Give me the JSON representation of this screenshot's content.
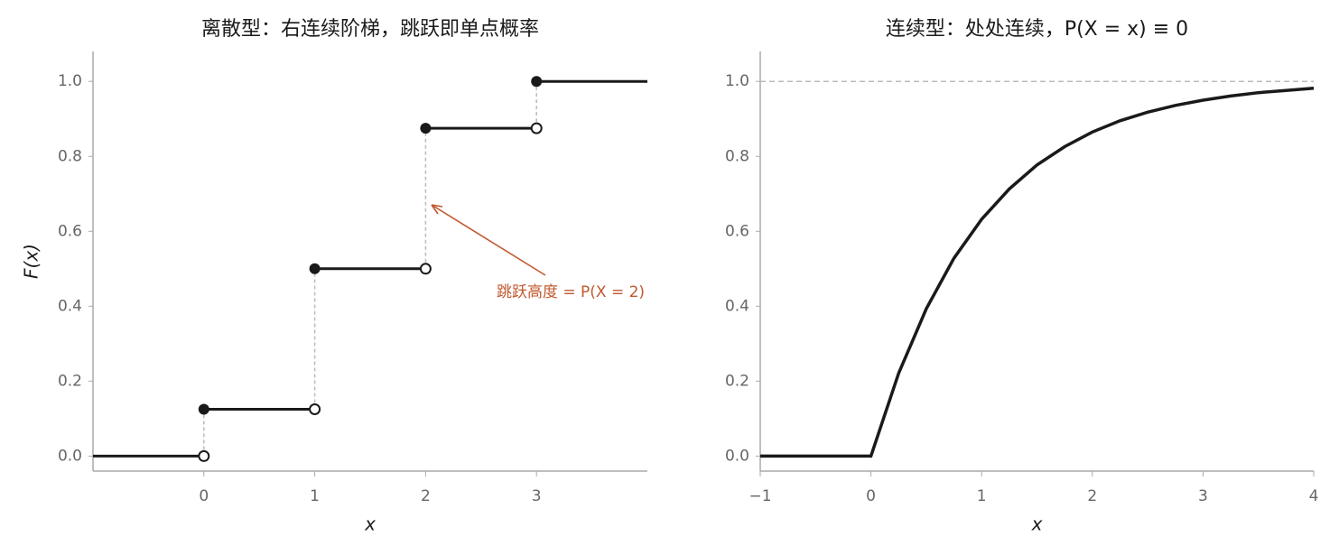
{
  "chart_data": [
    {
      "type": "step",
      "title": "离散型：右连续阶梯，跳跃即单点概率",
      "xlabel": "x",
      "ylabel": "F(x)",
      "x": [
        -1,
        0,
        1,
        2,
        3
      ],
      "values": [
        0,
        0.125,
        0.5,
        0.875,
        1.0
      ],
      "color": "#1a1a1a",
      "xlim": [
        -1,
        4
      ],
      "ylim": [
        -0.04,
        1.08
      ],
      "xticks": [
        0,
        1,
        2,
        3
      ],
      "yticks": [
        {
          "value": 0,
          "label": "0.0"
        },
        0.2,
        0.4,
        0.6,
        0.8,
        {
          "value": 1,
          "label": "1.0"
        }
      ],
      "annotation": {
        "text": "跳跃高度 = P(X = 2)",
        "color": "#c0582f"
      }
    },
    {
      "type": "line",
      "title": "连续型：处处连续，P(X = x) ≡ 0",
      "xlabel": "x",
      "x": [
        -1,
        0,
        0.25,
        0.5,
        0.75,
        1,
        1.25,
        1.5,
        1.75,
        2,
        2.25,
        2.5,
        2.75,
        3,
        3.25,
        3.5,
        3.75,
        4
      ],
      "values": [
        0,
        0,
        0.221,
        0.393,
        0.528,
        0.632,
        0.713,
        0.777,
        0.826,
        0.865,
        0.895,
        0.918,
        0.936,
        0.95,
        0.961,
        0.97,
        0.976,
        0.982
      ],
      "color": "#1a1a1a",
      "hline": 1.0,
      "xlim": [
        -1,
        4
      ],
      "ylim": [
        -0.04,
        1.08
      ],
      "xticks": [
        {
          "value": -1,
          "label": "−1"
        },
        0,
        1,
        2,
        3,
        4
      ],
      "yticks": [
        {
          "value": 0,
          "label": "0.0"
        },
        0.2,
        0.4,
        0.6,
        0.8,
        {
          "value": 1,
          "label": "1.0"
        }
      ]
    }
  ]
}
